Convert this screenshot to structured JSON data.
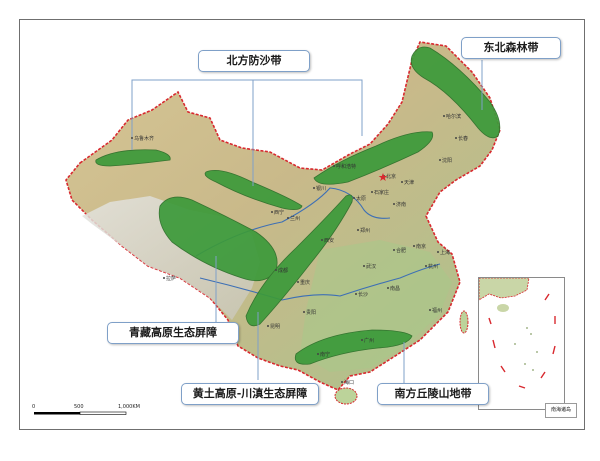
{
  "callouts": {
    "north_sand": "北方防沙带",
    "northeast_forest": "东北森林带",
    "qinghai_tibet": "青藏高原生态屏障",
    "loess_sichuan": "黄土高原-川滇生态屏障",
    "south_hills": "南方丘陵山地带"
  },
  "cities": {
    "urumqi": "乌鲁木齐",
    "harbin": "哈尔滨",
    "changchun": "长春",
    "shenyang": "沈阳",
    "hohhot": "呼和浩特",
    "beijing": "北京",
    "tianjin": "天津",
    "shijiazhuang": "石家庄",
    "taiyuan": "太原",
    "jinan": "济南",
    "yinchuan": "银川",
    "xining": "西宁",
    "lanzhou": "兰州",
    "xian": "西安",
    "zhengzhou": "郑州",
    "chengdu": "成都",
    "chongqing": "重庆",
    "wuhan": "武汉",
    "hefei": "合肥",
    "nanjing": "南京",
    "shanghai": "上海",
    "hangzhou": "杭州",
    "changsha": "长沙",
    "nanchang": "南昌",
    "fuzhou": "福州",
    "guiyang": "贵阳",
    "kunming": "昆明",
    "nanning": "南宁",
    "guangzhou": "广州",
    "haikou": "海口",
    "lhasa": "拉萨"
  },
  "scale": {
    "zero": "0",
    "mid": "500",
    "end": "1,000KM"
  },
  "inset": {
    "label": "南海诸岛"
  },
  "colors": {
    "barrier_green": "#3c9a3a",
    "border_red": "#d8292f",
    "callout_border": "#7fa0c8",
    "river_blue": "#3d6fb5"
  }
}
